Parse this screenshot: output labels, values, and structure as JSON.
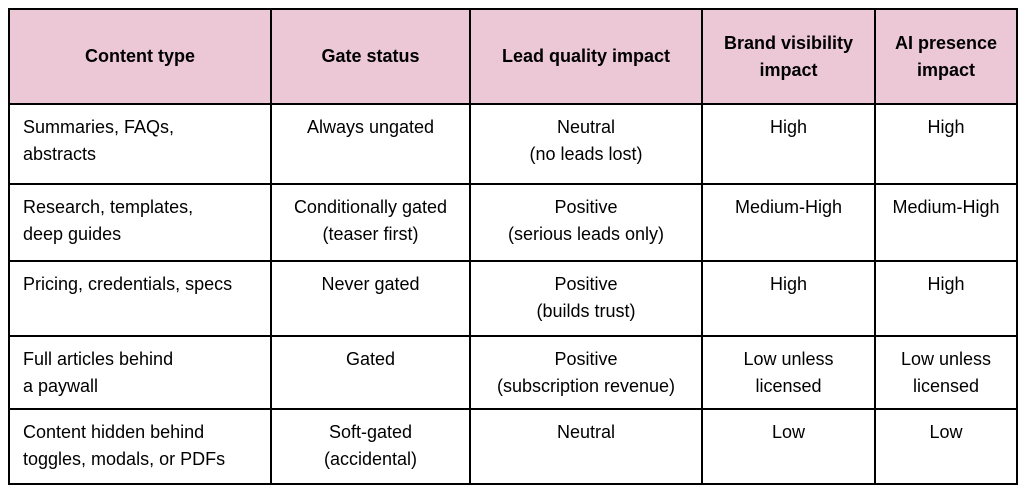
{
  "colors": {
    "header_bg": "#ecc8d7",
    "border": "#000000",
    "text": "#000000"
  },
  "chart_data": {
    "type": "table",
    "title": "",
    "columns": [
      "Content type",
      "Gate status",
      "Lead quality impact",
      "Brand visibility\nimpact",
      "AI presence\nimpact"
    ],
    "rows": [
      [
        "Summaries, FAQs,\nabstracts",
        "Always ungated",
        "Neutral\n(no leads lost)",
        "High",
        "High"
      ],
      [
        "Research, templates,\ndeep guides",
        "Conditionally gated\n(teaser first)",
        "Positive\n(serious leads only)",
        "Medium-High",
        "Medium-High"
      ],
      [
        "Pricing, credentials, specs",
        "Never gated",
        "Positive\n(builds trust)",
        "High",
        "High"
      ],
      [
        "Full articles behind\na paywall",
        "Gated",
        "Positive\n(subscription revenue)",
        "Low unless\nlicensed",
        "Low unless\nlicensed"
      ],
      [
        "Content hidden behind\ntoggles, modals, or PDFs",
        "Soft-gated\n(accidental)",
        "Neutral",
        "Low",
        "Low"
      ]
    ]
  }
}
